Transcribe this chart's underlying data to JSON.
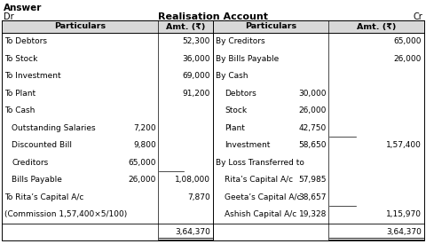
{
  "title": "Realisation Account",
  "header_left": "Dr",
  "header_right": "Cr",
  "bold_title": "Answer",
  "col_headers": [
    "Particulars",
    "Amt. (₹)",
    "Particulars",
    "Amt. (₹)"
  ],
  "left_rows": [
    [
      "To Debtors",
      "",
      "52,300"
    ],
    [
      "To Stock",
      "",
      "36,000"
    ],
    [
      "To Investment",
      "",
      "69,000"
    ],
    [
      "To Plant",
      "",
      "91,200"
    ],
    [
      "To Cash",
      "",
      ""
    ],
    [
      "  Outstanding Salaries",
      "7,200",
      ""
    ],
    [
      "  Discounted Bill",
      "9,800",
      ""
    ],
    [
      "  Creditors",
      "65,000",
      ""
    ],
    [
      "  Bills Payable",
      "26,000",
      "1,08,000"
    ],
    [
      "To Rita’s Capital A/c",
      "",
      "7,870"
    ],
    [
      "(Commission 1,57,400×5/100)",
      "",
      ""
    ],
    [
      "",
      "",
      "3,64,370"
    ]
  ],
  "right_rows": [
    [
      "By Creditors",
      "",
      "65,000"
    ],
    [
      "By Bills Payable",
      "",
      "26,000"
    ],
    [
      "By Cash",
      "",
      ""
    ],
    [
      "  Debtors",
      "30,000",
      ""
    ],
    [
      "  Stock",
      "26,000",
      ""
    ],
    [
      "  Plant",
      "42,750",
      ""
    ],
    [
      "  Investment",
      "58,650",
      "1,57,400"
    ],
    [
      "By Loss Transferred to",
      "",
      ""
    ],
    [
      "  Rita’s Capital A/c",
      "57,985",
      ""
    ],
    [
      "  Geeta’s Capital A/c",
      "38,657",
      ""
    ],
    [
      "  Ashish Capital A/c",
      "19,328",
      "1,15,970"
    ],
    [
      "",
      "",
      "3,64,370"
    ]
  ],
  "text_color": "#000000",
  "header_gray": "#d8d8d8"
}
